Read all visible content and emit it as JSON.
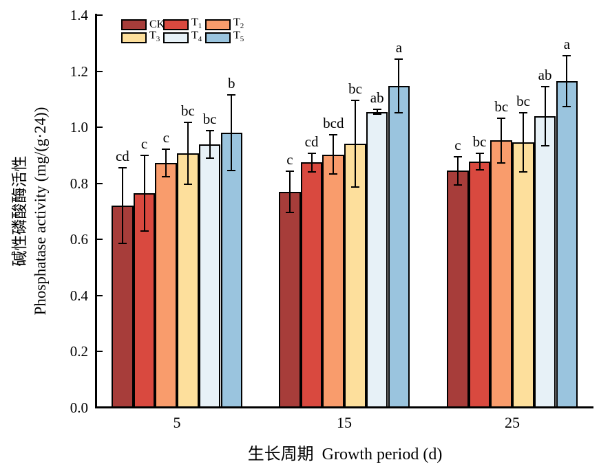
{
  "chart_data": {
    "type": "bar",
    "title": "",
    "xlabel": "生长周期  Growth period (d)",
    "ylabel_cn": "碱性磷酸酶活性",
    "ylabel_en": "Phosphatase activity (mg/(g·24))",
    "categories": [
      "5",
      "15",
      "25"
    ],
    "ylim": [
      0,
      1.4
    ],
    "yticks": [
      "0.0",
      "0.2",
      "0.4",
      "0.6",
      "0.8",
      "1.0",
      "1.2",
      "1.4"
    ],
    "grid": false,
    "legend_position": "top-left-inside",
    "legend_columns": 3,
    "series": [
      {
        "name": "CK",
        "label_base": "CK",
        "label_sub": "",
        "color": "#A73D3A",
        "values": [
          0.72,
          0.77,
          0.845
        ],
        "errors": [
          0.135,
          0.073,
          0.05
        ],
        "letters": [
          "cd",
          "c",
          "c"
        ]
      },
      {
        "name": "T1",
        "label_base": "T",
        "label_sub": "1",
        "color": "#D9493F",
        "values": [
          0.765,
          0.875,
          0.878
        ],
        "errors": [
          0.134,
          0.033,
          0.03
        ],
        "letters": [
          "c",
          "cd",
          "bc"
        ]
      },
      {
        "name": "T2",
        "label_base": "T",
        "label_sub": "2",
        "color": "#F99C6C",
        "values": [
          0.873,
          0.903,
          0.953
        ],
        "errors": [
          0.05,
          0.07,
          0.08
        ],
        "letters": [
          "c",
          "bcd",
          "bc"
        ]
      },
      {
        "name": "T3",
        "label_base": "T",
        "label_sub": "3",
        "color": "#FDDF9C",
        "values": [
          0.908,
          0.942,
          0.947
        ],
        "errors": [
          0.11,
          0.155,
          0.105
        ],
        "letters": [
          "bc",
          "bc",
          "bc"
        ]
      },
      {
        "name": "T4",
        "label_base": "T",
        "label_sub": "4",
        "color": "#E7F1F7",
        "values": [
          0.939,
          1.055,
          1.04
        ],
        "errors": [
          0.05,
          0.008,
          0.105
        ],
        "letters": [
          "bc",
          "ab",
          "ab"
        ]
      },
      {
        "name": "T5",
        "label_base": "T",
        "label_sub": "5",
        "color": "#9AC4DE",
        "values": [
          0.981,
          1.148,
          1.165
        ],
        "errors": [
          0.135,
          0.095,
          0.09
        ],
        "letters": [
          "b",
          "a",
          "a"
        ]
      }
    ],
    "axis_color": "#000000",
    "bar_edge_color": "#000000"
  }
}
